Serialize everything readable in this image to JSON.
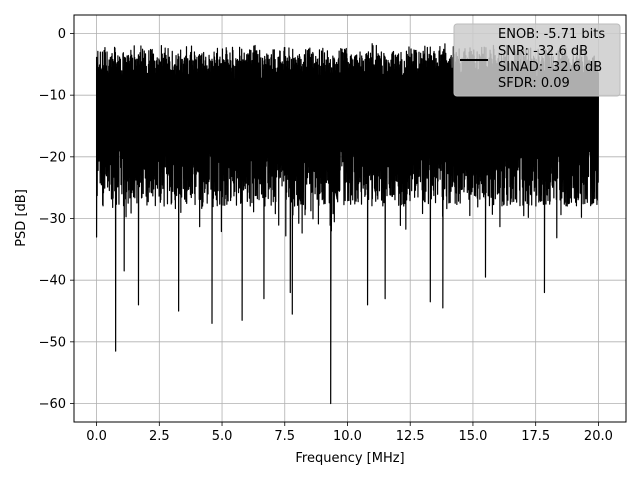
{
  "chart_data": {
    "type": "line",
    "title": "",
    "xlabel": "Frequency [MHz]",
    "ylabel": "PSD [dB]",
    "xlim": [
      -0.9,
      21.1
    ],
    "ylim": [
      -63.0,
      3.0
    ],
    "xticks": [
      0.0,
      2.5,
      5.0,
      7.5,
      10.0,
      12.5,
      15.0,
      17.5,
      20.0
    ],
    "xtick_labels": [
      "0.0",
      "2.5",
      "5.0",
      "7.5",
      "10.0",
      "12.5",
      "15.0",
      "17.5",
      "20.0"
    ],
    "yticks": [
      0,
      -10,
      -20,
      -30,
      -40,
      -50,
      -60
    ],
    "ytick_labels": [
      "0",
      "−10",
      "−20",
      "−30",
      "−40",
      "−50",
      "−60"
    ],
    "grid": true,
    "series": [
      {
        "name": "ENOB: -5.71 bits\nSNR: -32.6 dB\nSINAD: -32.6 dB\nSFDR: 0.09",
        "color": "#000000",
        "x_range": [
          0.0,
          20.0
        ],
        "envelope": {
          "top_min": -5.5,
          "top_max": -1.5,
          "typical_low": -28.0
        },
        "notable_dips": [
          {
            "x": 0.0,
            "y": -33.0
          },
          {
            "x": 0.76,
            "y": -51.5
          },
          {
            "x": 1.1,
            "y": -38.5
          },
          {
            "x": 1.67,
            "y": -44.0
          },
          {
            "x": 3.27,
            "y": -45.0
          },
          {
            "x": 4.6,
            "y": -47.0
          },
          {
            "x": 5.8,
            "y": -46.5
          },
          {
            "x": 6.67,
            "y": -43.0
          },
          {
            "x": 7.72,
            "y": -42.0
          },
          {
            "x": 7.8,
            "y": -45.5
          },
          {
            "x": 9.33,
            "y": -60.0
          },
          {
            "x": 10.8,
            "y": -44.0
          },
          {
            "x": 11.5,
            "y": -43.0
          },
          {
            "x": 13.3,
            "y": -43.5
          },
          {
            "x": 13.8,
            "y": -44.5
          },
          {
            "x": 15.5,
            "y": -39.5
          },
          {
            "x": 17.85,
            "y": -42.0
          }
        ]
      }
    ],
    "legend": {
      "location": "top-right",
      "lines": [
        "ENOB: -5.71 bits",
        "SNR: -32.6 dB",
        "SINAD: -32.6 dB",
        "SFDR: 0.09"
      ]
    }
  }
}
